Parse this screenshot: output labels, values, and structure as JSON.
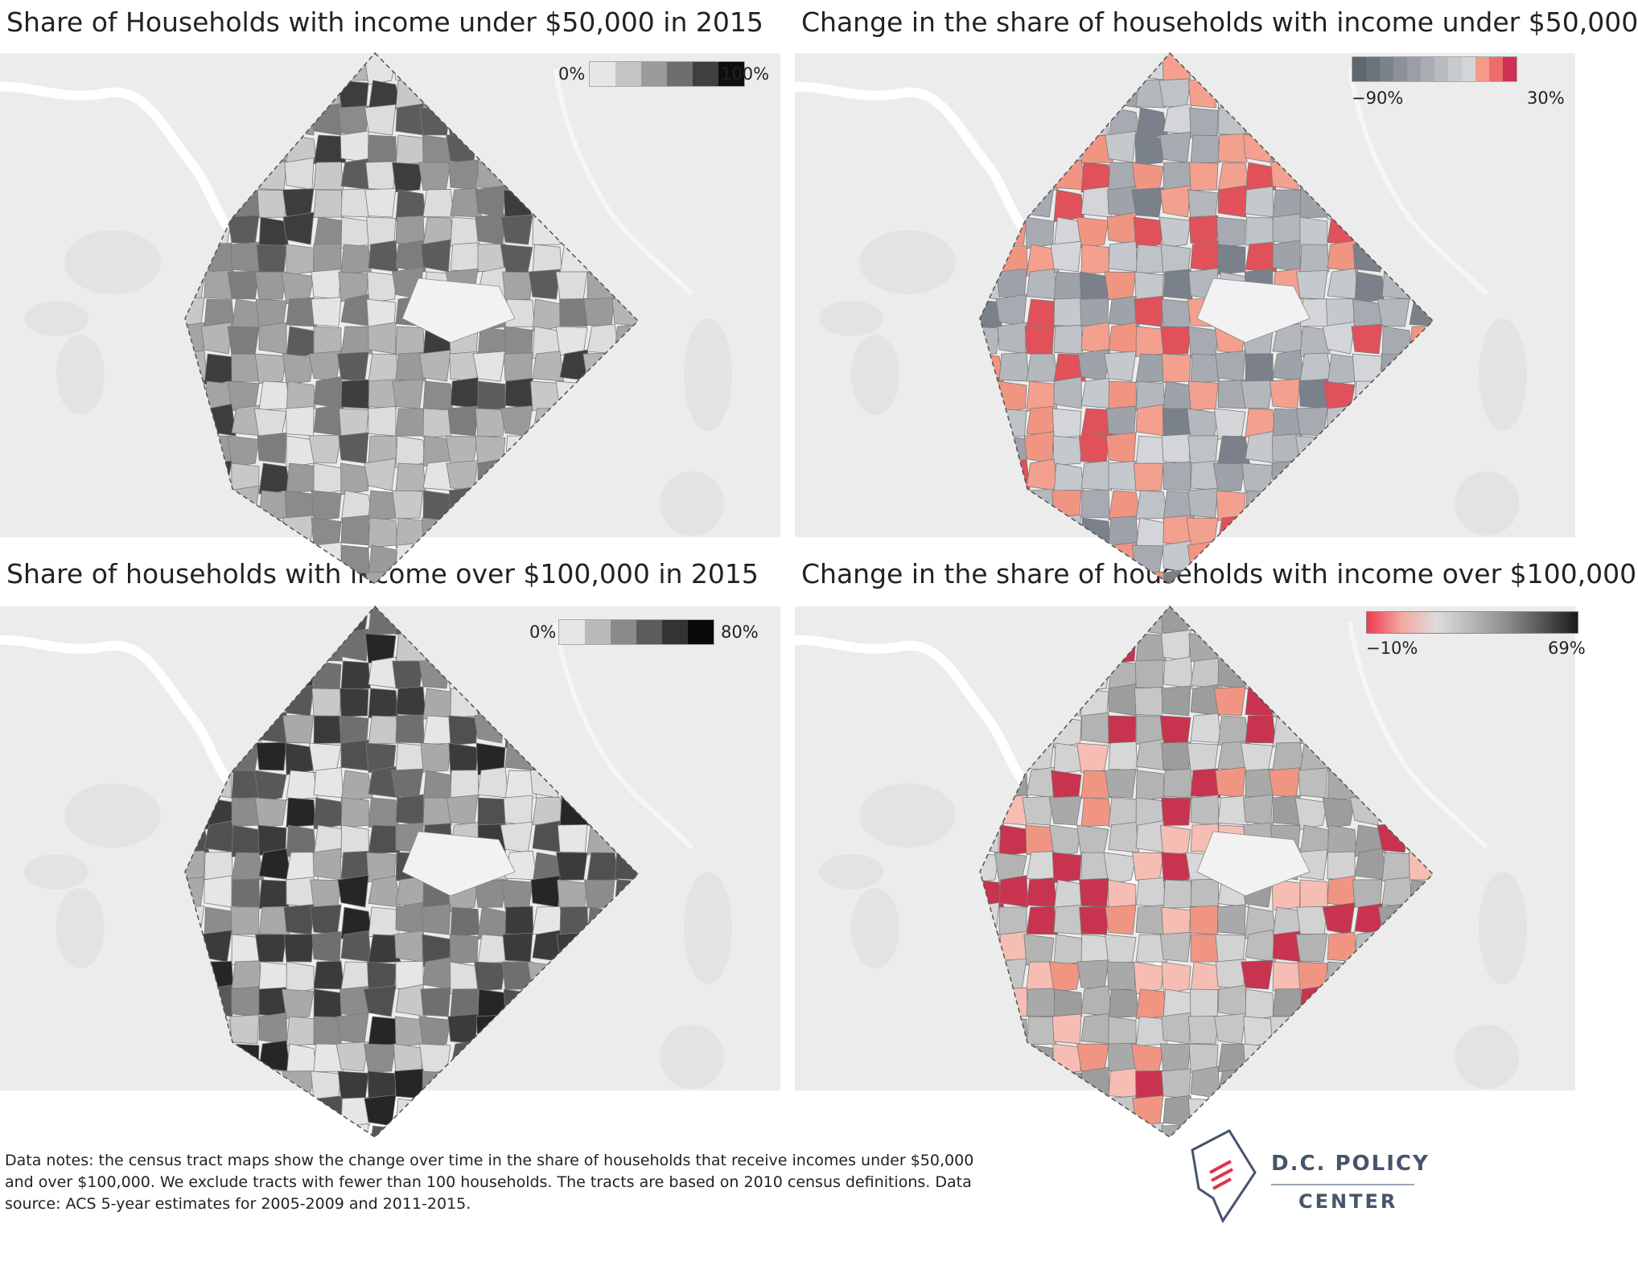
{
  "panels": [
    {
      "title": "Share of Households with income under $50,000 in 2015",
      "legend": {
        "min_label": "0%",
        "max_label": "100%",
        "colors": [
          "#e6e6e6",
          "#c4c4c4",
          "#9a9a9a",
          "#6e6e6e",
          "#3f3f3f",
          "#0e0e0e"
        ]
      },
      "tract_colors": [
        "#dcdcdc",
        "#b5b5b5",
        "#9a9a9a",
        "#7d7d7d",
        "#5c5c5c",
        "#c8c8c8",
        "#a4a4a4",
        "#8b8b8b",
        "#3d3d3d",
        "#e4e4e4"
      ]
    },
    {
      "title": "Change in the share of households with income under $50,000",
      "legend": {
        "min_label": "−90%",
        "max_label": "30%",
        "colors": [
          "#5f6670",
          "#6d737c",
          "#7c828b",
          "#8b9099",
          "#9a9fa6",
          "#a9adb3",
          "#b8bbc0",
          "#c6c9cd",
          "#d3d5d8",
          "#f49a88",
          "#ee6b6b",
          "#d02f53"
        ]
      },
      "tract_colors": [
        "#b4b7bc",
        "#c5c8cc",
        "#a7abb1",
        "#f19583",
        "#d3d5d8",
        "#f3a08f",
        "#9ea2a9",
        "#e0515a",
        "#bfc2c7",
        "#7b818a"
      ]
    },
    {
      "title": "Share of households with income over $100,000 in 2015",
      "legend": {
        "min_label": "0%",
        "max_label": "80%",
        "colors": [
          "#e6e6e6",
          "#b9b9b9",
          "#8a8a8a",
          "#5c5c5c",
          "#333333",
          "#0a0a0a"
        ]
      },
      "tract_colors": [
        "#3b3b3b",
        "#585858",
        "#6f6f6f",
        "#8c8c8c",
        "#a9a9a9",
        "#c8c8c8",
        "#dedede",
        "#505050",
        "#e6e6e6",
        "#262626"
      ]
    },
    {
      "title": "Change in the share of households with income over $100,000",
      "legend": {
        "min_label": "−10%",
        "max_label": "69%",
        "colors": [
          "#ee3a4e",
          "#f4a9a3",
          "#dcdcdc",
          "#b7b7b7",
          "#8c8c8c",
          "#555555",
          "#1a1a1a"
        ]
      },
      "tract_colors": [
        "#c6c6c6",
        "#b3b3b3",
        "#d2d2d2",
        "#f19583",
        "#a9a9a9",
        "#bdbdbd",
        "#f6bdb4",
        "#c8344f",
        "#9d9d9d",
        "#d7d7d7"
      ]
    }
  ],
  "notes": "Data notes: the census tract maps show the change over time in the share of households that receive incomes under $50,000 and over $100,000. We exclude tracts with fewer than 100 households. The tracts are based on 2010 census definitions. Data source: ACS 5-year estimates for 2005-2009 and 2011-2015.",
  "brand": {
    "name": "D.C. POLICY",
    "sub": "CENTER",
    "logo_color": "#46546c",
    "accent_color": "#e0344a"
  }
}
